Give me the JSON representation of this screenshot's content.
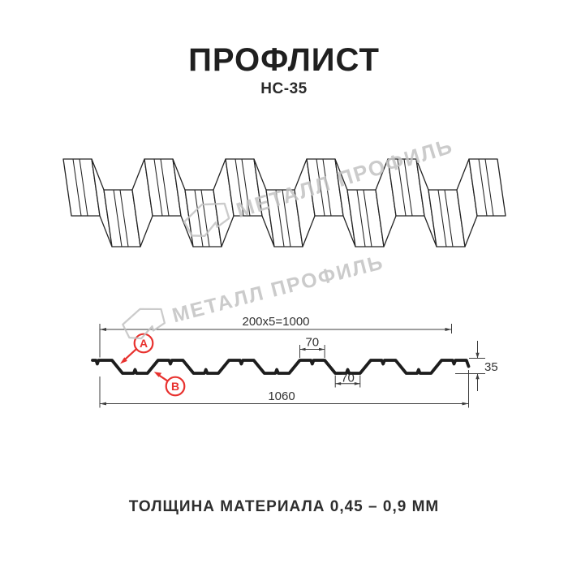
{
  "page": {
    "title": "ПРОФЛИСТ",
    "subtitle": "НС-35",
    "footer_note": "ТОЛЩИНА МАТЕРИАЛА 0,45 – 0,9 ММ"
  },
  "watermark": {
    "brand": "МЕТАЛЛ ПРОФИЛЬ"
  },
  "cross_section": {
    "dim_useful_width": "200x5=1000",
    "dim_top_flange_width": "70",
    "dim_bottom_flange_width": "70",
    "dim_profile_height": "35",
    "dim_overall_width": "1060",
    "callout_a": "A",
    "callout_b": "B"
  },
  "colors": {
    "line": "#1d1d1d",
    "dimension": "#3c3c3c",
    "accent_red": "#e8312e",
    "watermark_gray": "#c3c3c3"
  }
}
